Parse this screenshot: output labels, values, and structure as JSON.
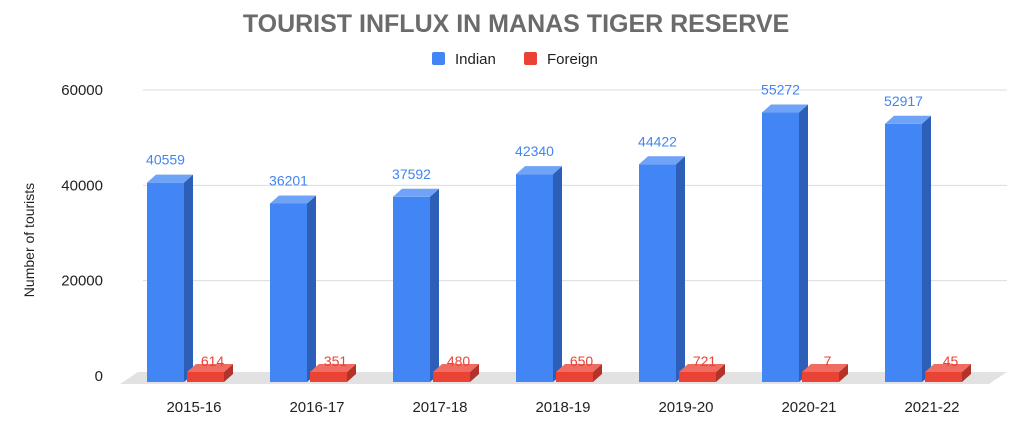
{
  "chart_data": {
    "type": "bar",
    "title": "TOURIST INFLUX IN MANAS TIGER RESERVE",
    "xlabel": "",
    "ylabel": "Number of tourists",
    "categories": [
      "2015-16",
      "2016-17",
      "2017-18",
      "2018-19",
      "2019-20",
      "2020-21",
      "2021-22"
    ],
    "series": [
      {
        "name": "Indian",
        "values": [
          40559,
          36201,
          37592,
          42340,
          44422,
          55272,
          52917
        ],
        "color": "#4285F4"
      },
      {
        "name": "Foreign",
        "values": [
          614,
          351,
          480,
          650,
          721,
          7,
          45
        ],
        "color": "#EA4335"
      }
    ],
    "yticks": [
      0,
      20000,
      40000,
      60000
    ],
    "ylim": [
      0,
      60000
    ],
    "grid": true,
    "legend": "top",
    "style": "3d-column"
  }
}
